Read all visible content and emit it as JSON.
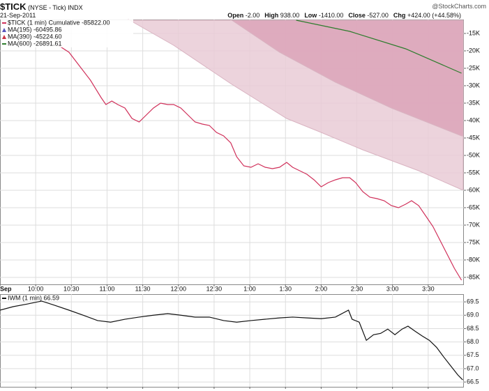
{
  "header": {
    "symbol": "$TICK",
    "exchange": "(NYSE - Tick)",
    "kind": "INDX",
    "date": "21-Sep-2011",
    "source": "@StockCharts.com",
    "quote": [
      {
        "label": "Open",
        "value": "-2.00"
      },
      {
        "label": "High",
        "value": "938.00"
      },
      {
        "label": "Low",
        "value": "-1410.00"
      },
      {
        "label": "Close",
        "value": "-527.00"
      },
      {
        "label": "Chg",
        "value": "+424.00 (+44.58%)"
      }
    ]
  },
  "chart_data": [
    {
      "type": "line",
      "grid": true,
      "x": [
        619,
        628,
        637,
        646,
        655,
        659,
        664,
        669,
        675,
        681,
        687,
        693,
        699,
        705,
        711,
        716,
        722,
        728,
        734,
        740,
        746,
        752,
        758,
        764,
        769,
        775,
        781,
        787,
        793,
        799,
        805,
        811,
        816,
        822,
        828,
        834,
        840,
        846,
        852,
        858,
        864,
        869,
        875,
        881,
        887,
        893,
        899,
        905,
        911,
        916,
        922,
        928,
        934,
        940,
        946,
        952,
        958
      ],
      "xlim": [
        570,
        960
      ],
      "xticks": [
        {
          "value": 570,
          "label": "Sep"
        },
        {
          "value": 600,
          "label": "10:00"
        },
        {
          "value": 630,
          "label": "10:30"
        },
        {
          "value": 660,
          "label": "11:00"
        },
        {
          "value": 690,
          "label": "11:30"
        },
        {
          "value": 720,
          "label": "12:00"
        },
        {
          "value": 750,
          "label": "12:30"
        },
        {
          "value": 780,
          "label": "1:00"
        },
        {
          "value": 810,
          "label": "1:30"
        },
        {
          "value": 840,
          "label": "2:00"
        },
        {
          "value": 870,
          "label": "2:30"
        },
        {
          "value": 900,
          "label": "3:00"
        },
        {
          "value": 930,
          "label": "3:30"
        }
      ],
      "ylim": [
        -87000,
        -11000
      ],
      "yticks": [
        {
          "value": -15000,
          "label": "-15K"
        },
        {
          "value": -20000,
          "label": "-20K"
        },
        {
          "value": -25000,
          "label": "-25K"
        },
        {
          "value": -30000,
          "label": "-30K"
        },
        {
          "value": -35000,
          "label": "-35K"
        },
        {
          "value": -40000,
          "label": "-40K"
        },
        {
          "value": -45000,
          "label": "-45K"
        },
        {
          "value": -50000,
          "label": "-50K"
        },
        {
          "value": -55000,
          "label": "-55K"
        },
        {
          "value": -60000,
          "label": "-60K"
        },
        {
          "value": -65000,
          "label": "-65K"
        },
        {
          "value": -70000,
          "label": "-70K"
        },
        {
          "value": -75000,
          "label": "-75K"
        },
        {
          "value": -80000,
          "label": "-80K"
        },
        {
          "value": -85000,
          "label": "-85K"
        }
      ],
      "series": [
        {
          "name": "$TICK (1 min) Cumulative -85822.00",
          "color": "#d0305a",
          "values": [
            -18400,
            -20400,
            -24400,
            -28400,
            -33400,
            -35400,
            -34400,
            -35400,
            -36400,
            -39400,
            -40400,
            -38400,
            -36400,
            -35000,
            -35400,
            -35400,
            -36400,
            -38400,
            -40400,
            -41000,
            -41400,
            -43400,
            -44400,
            -46400,
            -50400,
            -53000,
            -53400,
            -52400,
            -53400,
            -53800,
            -53400,
            -52000,
            -53400,
            -54400,
            -55400,
            -57000,
            -59000,
            -57800,
            -57000,
            -56400,
            -56400,
            -57800,
            -60400,
            -62000,
            -62400,
            -63000,
            -64400,
            -65000,
            -64000,
            -63000,
            -64400,
            -67400,
            -70400,
            -74400,
            -78400,
            -82400,
            -85800
          ]
        },
        {
          "name": "MA(195) -60495.86",
          "color": "#5555bb",
          "fill": "#e9cbd6",
          "x": [
            678,
            716,
            764,
            811,
            840,
            875,
            922,
            958
          ],
          "values": [
            -11000,
            -18400,
            -29400,
            -39400,
            -43400,
            -48400,
            -54400,
            -59800
          ]
        },
        {
          "name": "MA(390) -45224.60",
          "color": "#cc3344",
          "fill": "#dca3b8",
          "x": [
            764,
            805,
            852,
            899,
            958
          ],
          "values": [
            -11000,
            -20400,
            -29000,
            -36400,
            -44400
          ]
        },
        {
          "name": "MA(600) -26891.61",
          "color": "#2e7d2e",
          "x": [
            819,
            864,
            911,
            958
          ],
          "values": [
            -11200,
            -14400,
            -19400,
            -26400
          ]
        }
      ]
    },
    {
      "type": "line",
      "grid": true,
      "x": [
        570,
        581,
        593,
        605,
        616,
        628,
        640,
        652,
        663,
        675,
        687,
        699,
        711,
        722,
        734,
        746,
        758,
        769,
        781,
        793,
        805,
        816,
        828,
        840,
        852,
        863,
        866,
        872,
        878,
        884,
        890,
        896,
        902,
        908,
        913,
        919,
        925,
        931,
        937,
        943,
        949,
        955,
        959
      ],
      "xlim": [
        570,
        960
      ],
      "xticks": [
        600,
        630,
        660,
        690,
        720,
        750,
        780,
        810,
        840,
        870,
        900,
        930
      ],
      "ylim": [
        66.32,
        69.79
      ],
      "yticks": [
        69.5,
        {
          "value": 69,
          "label": "69.0"
        },
        68.5,
        {
          "value": 68,
          "label": "68.0"
        },
        67.5,
        {
          "value": 67,
          "label": "67.0"
        },
        66.5
      ],
      "series": [
        {
          "name": "IWM (1 min) 66.59",
          "color": "#111111",
          "values": [
            69.19,
            69.32,
            69.42,
            69.53,
            69.37,
            69.19,
            69.0,
            68.8,
            68.74,
            68.85,
            68.93,
            69.0,
            69.06,
            69.0,
            68.93,
            68.93,
            68.8,
            68.74,
            68.8,
            68.85,
            68.9,
            68.93,
            68.9,
            68.87,
            68.93,
            69.19,
            68.85,
            68.74,
            68.06,
            68.27,
            68.32,
            68.48,
            68.27,
            68.48,
            68.59,
            68.4,
            68.22,
            68.06,
            67.8,
            67.44,
            67.1,
            66.76,
            66.58
          ]
        }
      ]
    }
  ]
}
